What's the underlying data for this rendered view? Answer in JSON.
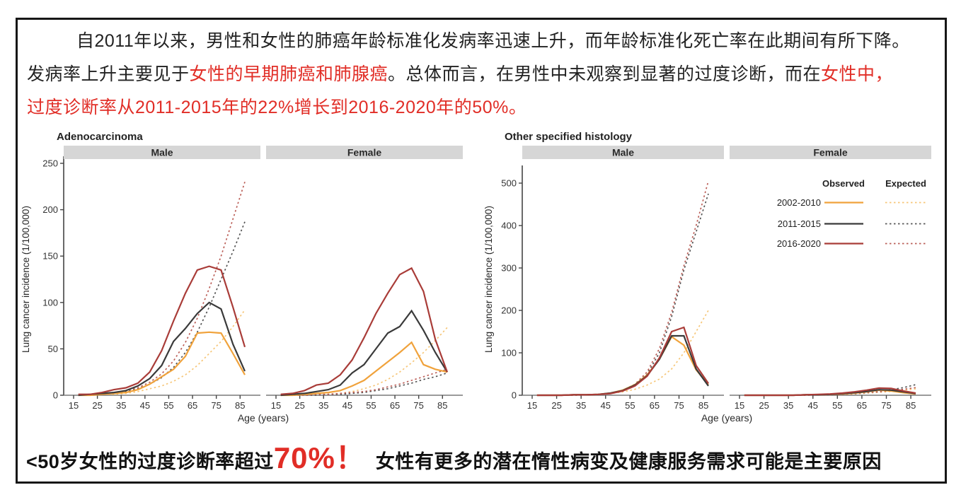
{
  "page": {
    "paragraph_lines": [
      {
        "indent": true,
        "segments": [
          {
            "text": "自2011年以来，男性和女性的肺癌年龄标准化发病率迅速上升，而年龄标准化死亡率在此期间有所下降。",
            "color": "black"
          }
        ]
      },
      {
        "indent": false,
        "segments": [
          {
            "text": "发病率上升主要见于",
            "color": "black"
          },
          {
            "text": "女性的早期肺癌和肺腺癌",
            "color": "red"
          },
          {
            "text": "。总体而言，在男性中未观察到显著的过度诊断，而在",
            "color": "black"
          },
          {
            "text": "女性中，",
            "color": "red"
          }
        ]
      },
      {
        "indent": false,
        "segments": [
          {
            "text": "过度诊断率从2011-2015年的22%增长到2016-2020年的50%。",
            "color": "red"
          }
        ]
      }
    ],
    "banner": {
      "segments": [
        {
          "text": "<50岁女性的过度诊断率超过",
          "color": "black",
          "size": "normal"
        },
        {
          "text": "70%！",
          "color": "red",
          "size": "large"
        },
        {
          "text": "女性有更多的潜在惰性病变及健康服务需求可能是主要原因",
          "color": "black",
          "size": "normal"
        }
      ]
    }
  },
  "colors": {
    "observed": {
      "2002-2010": "#f0a23b",
      "2011-2015": "#3a3a3a",
      "2016-2020": "#a93c38"
    },
    "expected": {
      "2002-2010": "#f6c678",
      "2011-2015": "#555555",
      "2016-2020": "#bb5f58"
    },
    "strip_bg": "#d6d6d6",
    "axis": "#7a7a7a",
    "text_red": "#e12d26",
    "text_black": "#1f1f1f"
  },
  "chart_data": [
    {
      "id": "adenocarcinoma",
      "type": "line",
      "title": "Adenocarcinoma",
      "ylabel": "Lung cancer incidence (1/100,000)",
      "xlabel": "Age (years)",
      "ylim": [
        0,
        260
      ],
      "yticks": [
        0,
        50,
        100,
        150,
        200,
        250
      ],
      "xticks": [
        15,
        25,
        35,
        45,
        55,
        65,
        75,
        85
      ],
      "x": [
        17,
        22,
        27,
        32,
        37,
        42,
        47,
        52,
        57,
        62,
        67,
        72,
        77,
        82,
        87
      ],
      "grid": false,
      "facets": [
        {
          "label": "Male",
          "series": [
            {
              "period": "2002-2010",
              "kind": "expected",
              "values": [
                0,
                0,
                1,
                1,
                2,
                4,
                7,
                10,
                15,
                22,
                32,
                45,
                58,
                74,
                92
              ]
            },
            {
              "period": "2011-2015",
              "kind": "expected",
              "values": [
                0,
                1,
                1,
                2,
                4,
                7,
                12,
                19,
                30,
                46,
                68,
                95,
                125,
                155,
                187
              ]
            },
            {
              "period": "2016-2020",
              "kind": "expected",
              "values": [
                0,
                1,
                2,
                3,
                5,
                8,
                14,
                23,
                37,
                57,
                83,
                115,
                150,
                190,
                230
              ]
            },
            {
              "period": "2002-2010",
              "kind": "observed",
              "values": [
                0,
                0,
                1,
                2,
                3,
                6,
                12,
                20,
                28,
                42,
                67,
                68,
                67,
                45,
                22
              ]
            },
            {
              "period": "2011-2015",
              "kind": "observed",
              "values": [
                0,
                1,
                2,
                3,
                5,
                10,
                18,
                32,
                58,
                72,
                88,
                100,
                93,
                55,
                26
              ]
            },
            {
              "period": "2016-2020",
              "kind": "observed",
              "values": [
                1,
                1,
                3,
                6,
                8,
                13,
                25,
                48,
                80,
                110,
                135,
                139,
                135,
                95,
                52
              ]
            }
          ]
        },
        {
          "label": "Female",
          "series": [
            {
              "period": "2002-2010",
              "kind": "expected",
              "values": [
                0,
                0,
                0,
                1,
                1,
                2,
                4,
                7,
                11,
                17,
                25,
                35,
                46,
                59,
                73
              ]
            },
            {
              "period": "2011-2015",
              "kind": "expected",
              "values": [
                0,
                0,
                0,
                0,
                1,
                1,
                2,
                3,
                5,
                7,
                10,
                13,
                17,
                20,
                24
              ]
            },
            {
              "period": "2016-2020",
              "kind": "expected",
              "values": [
                0,
                0,
                0,
                1,
                1,
                2,
                3,
                4,
                6,
                9,
                12,
                16,
                20,
                24,
                28
              ]
            },
            {
              "period": "2002-2010",
              "kind": "observed",
              "values": [
                0,
                0,
                1,
                2,
                3,
                5,
                10,
                16,
                26,
                36,
                46,
                57,
                33,
                28,
                25
              ]
            },
            {
              "period": "2011-2015",
              "kind": "observed",
              "values": [
                0,
                1,
                2,
                4,
                6,
                11,
                24,
                33,
                50,
                67,
                74,
                91,
                70,
                46,
                25
              ]
            },
            {
              "period": "2016-2020",
              "kind": "observed",
              "values": [
                1,
                2,
                5,
                11,
                13,
                22,
                38,
                62,
                88,
                110,
                130,
                137,
                112,
                60,
                25
              ]
            }
          ]
        }
      ]
    },
    {
      "id": "other-specified-histology",
      "type": "line",
      "title": "Other specified histology",
      "ylabel": "Lung cancer incidence (1/100,000)",
      "xlabel": "Age (years)",
      "ylim": [
        0,
        550
      ],
      "yticks": [
        0,
        100,
        200,
        300,
        400,
        500
      ],
      "xticks": [
        15,
        25,
        35,
        45,
        55,
        65,
        75,
        85
      ],
      "x": [
        17,
        22,
        27,
        32,
        37,
        42,
        47,
        52,
        57,
        62,
        67,
        72,
        77,
        82,
        87
      ],
      "grid": false,
      "legend": {
        "observed": "Observed",
        "expected": "Expected",
        "periods": [
          "2002-2010",
          "2011-2015",
          "2016-2020"
        ]
      },
      "facets": [
        {
          "label": "Male",
          "series": [
            {
              "period": "2002-2010",
              "kind": "expected",
              "values": [
                0,
                0,
                0,
                0,
                1,
                2,
                4,
                8,
                14,
                24,
                38,
                62,
                100,
                150,
                200
              ]
            },
            {
              "period": "2011-2015",
              "kind": "expected",
              "values": [
                0,
                0,
                0,
                0,
                1,
                2,
                5,
                11,
                24,
                50,
                100,
                185,
                295,
                385,
                475
              ]
            },
            {
              "period": "2016-2020",
              "kind": "expected",
              "values": [
                0,
                0,
                0,
                0,
                1,
                2,
                5,
                12,
                26,
                55,
                110,
                195,
                305,
                400,
                505
              ]
            },
            {
              "period": "2002-2010",
              "kind": "observed",
              "values": [
                0,
                0,
                0,
                1,
                1,
                2,
                5,
                12,
                25,
                48,
                85,
                138,
                118,
                60,
                25
              ]
            },
            {
              "period": "2011-2015",
              "kind": "observed",
              "values": [
                0,
                0,
                0,
                1,
                1,
                2,
                5,
                11,
                24,
                46,
                85,
                140,
                140,
                62,
                22
              ]
            },
            {
              "period": "2016-2020",
              "kind": "observed",
              "values": [
                0,
                0,
                0,
                1,
                1,
                2,
                4,
                10,
                22,
                45,
                88,
                150,
                160,
                70,
                28
              ]
            }
          ]
        },
        {
          "label": "Female",
          "series": [
            {
              "period": "2002-2010",
              "kind": "expected",
              "values": [
                0,
                0,
                0,
                0,
                0,
                0,
                1,
                1,
                2,
                3,
                5,
                7,
                9,
                12,
                15
              ]
            },
            {
              "period": "2011-2015",
              "kind": "expected",
              "values": [
                0,
                0,
                0,
                0,
                0,
                0,
                1,
                2,
                3,
                4,
                6,
                9,
                13,
                18,
                25
              ]
            },
            {
              "period": "2016-2020",
              "kind": "expected",
              "values": [
                0,
                0,
                0,
                0,
                0,
                0,
                1,
                1,
                2,
                4,
                6,
                8,
                11,
                14,
                18
              ]
            },
            {
              "period": "2002-2010",
              "kind": "observed",
              "values": [
                0,
                0,
                0,
                0,
                0,
                1,
                1,
                2,
                3,
                5,
                8,
                12,
                10,
                6,
                3
              ]
            },
            {
              "period": "2011-2015",
              "kind": "observed",
              "values": [
                0,
                0,
                0,
                0,
                0,
                1,
                1,
                2,
                4,
                6,
                9,
                13,
                12,
                8,
                4
              ]
            },
            {
              "period": "2016-2020",
              "kind": "observed",
              "values": [
                0,
                0,
                0,
                0,
                0,
                1,
                2,
                3,
                5,
                8,
                12,
                17,
                16,
                10,
                5
              ]
            }
          ]
        }
      ]
    }
  ]
}
